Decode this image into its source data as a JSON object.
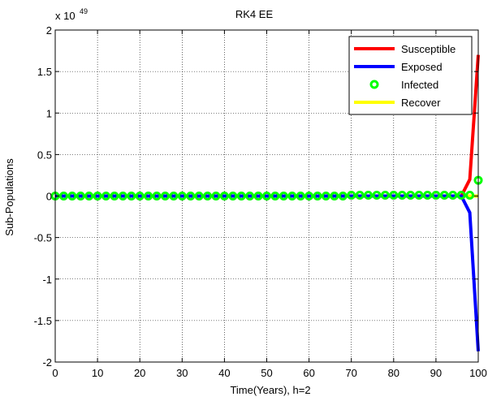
{
  "chart_data": {
    "type": "line",
    "title": "RK4 EE",
    "xlabel": "Time(Years), h=2",
    "ylabel": "Sub-Populations",
    "exponent_label": "x 10",
    "exponent_power": "49",
    "xlim": [
      0,
      100
    ],
    "ylim": [
      -2,
      2
    ],
    "xticks": [
      0,
      10,
      20,
      30,
      40,
      50,
      60,
      70,
      80,
      90,
      100
    ],
    "yticks": [
      2,
      1.5,
      1,
      0.5,
      0,
      -0.5,
      -1,
      -1.5,
      -2
    ],
    "x_tick_labels": [
      "0",
      "10",
      "20",
      "30",
      "40",
      "50",
      "60",
      "70",
      "80",
      "90",
      "100"
    ],
    "y_tick_labels": [
      "2",
      "1.5",
      "1",
      "0.5",
      "0",
      "-0.5",
      "-1",
      "-1.5",
      "-2"
    ],
    "grid": true,
    "legend_position": "top-right",
    "series": [
      {
        "name": "Susceptible",
        "style": "line",
        "color": "#ff0000",
        "x": [
          0,
          96,
          98,
          100
        ],
        "y": [
          0,
          0.0,
          0.2,
          1.7
        ]
      },
      {
        "name": "Exposed",
        "style": "line",
        "color": "#0000ff",
        "x": [
          0,
          96,
          98,
          100
        ],
        "y": [
          0,
          0.0,
          -0.2,
          -1.87
        ]
      },
      {
        "name": "Infected",
        "style": "markers",
        "color": "#00ff00",
        "x": [
          0,
          2,
          4,
          6,
          8,
          10,
          12,
          14,
          16,
          18,
          20,
          22,
          24,
          26,
          28,
          30,
          32,
          34,
          36,
          38,
          40,
          42,
          44,
          46,
          48,
          50,
          52,
          54,
          56,
          58,
          60,
          62,
          64,
          66,
          68,
          70,
          72,
          74,
          76,
          78,
          80,
          82,
          84,
          86,
          88,
          90,
          92,
          94,
          96,
          98,
          100
        ],
        "y": [
          0,
          0,
          0,
          0,
          0,
          0,
          0,
          0,
          0,
          0,
          0,
          0,
          0,
          0,
          0,
          0,
          0,
          0,
          0,
          0,
          0,
          0,
          0,
          0,
          0,
          0,
          0,
          0,
          0,
          0,
          0,
          0,
          0,
          0,
          0,
          0.01,
          0.01,
          0.01,
          0.01,
          0.01,
          0.01,
          0.01,
          0.01,
          0.01,
          0.01,
          0.01,
          0.01,
          0.01,
          0.01,
          0.01,
          0.19
        ]
      },
      {
        "name": "Recover",
        "style": "line",
        "color": "#ffff00",
        "x": [
          0,
          100
        ],
        "y": [
          0,
          0
        ]
      }
    ]
  }
}
